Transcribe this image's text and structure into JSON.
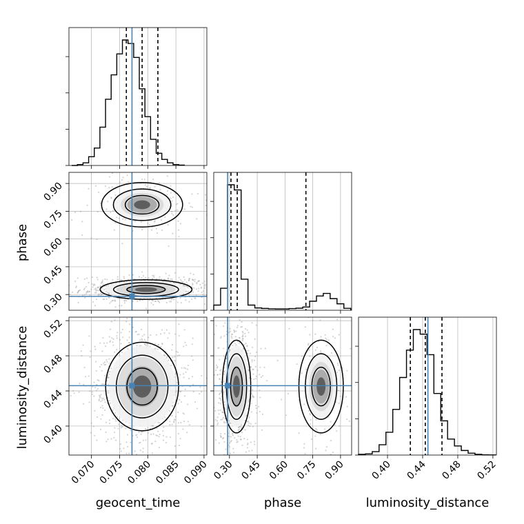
{
  "chart_data": {
    "type": "corner",
    "parameters": [
      "geocent_time",
      "phase",
      "luminosity_distance"
    ],
    "ranges": {
      "geocent_time": [
        0.066,
        0.0905
      ],
      "phase": [
        0.215,
        0.96
      ],
      "luminosity_distance": [
        0.367,
        0.524
      ]
    },
    "ticks": {
      "geocent_time": [
        "0.070",
        "0.075",
        "0.080",
        "0.085",
        "0.090"
      ],
      "phase": [
        "0.30",
        "0.45",
        "0.60",
        "0.75",
        "0.90"
      ],
      "luminosity_distance": [
        "0.40",
        "0.44",
        "0.48",
        "0.52"
      ]
    },
    "injection": {
      "geocent_time": 0.0772,
      "phase": 0.29,
      "luminosity_distance": 0.446
    },
    "quantiles": {
      "geocent_time": [
        0.0762,
        0.079,
        0.0818
      ],
      "phase": [
        0.308,
        0.342,
        0.713
      ],
      "luminosity_distance": [
        0.426,
        0.443,
        0.462
      ]
    },
    "histograms": {
      "geocent_time": {
        "edges_start": 0.0665,
        "bin_width": 0.001,
        "counts": [
          0.0,
          0.5,
          1.5,
          5.0,
          10.0,
          22.0,
          38.0,
          52.0,
          64.0,
          72.0,
          70.0,
          62.0,
          44.0,
          28.0,
          15.0,
          7.0,
          3.5,
          1.5,
          0.5,
          0.2
        ]
      },
      "phase": {
        "edges_start": 0.215,
        "bin_width": 0.037,
        "counts": [
          4.0,
          17.0,
          97.0,
          93.0,
          24.0,
          4.0,
          1.8,
          1.4,
          1.1,
          1.0,
          1.0,
          1.3,
          1.6,
          2.5,
          7.0,
          11.0,
          13.0,
          9.0,
          5.0,
          1.5
        ]
      },
      "luminosity_distance": {
        "edges_start": 0.367,
        "bin_width": 0.0078,
        "counts": [
          0.3,
          0.5,
          1.5,
          4.5,
          10.0,
          20.0,
          34.0,
          46.0,
          55.0,
          53.0,
          44.0,
          27.0,
          15.0,
          7.0,
          4.0,
          2.0,
          0.8,
          0.3,
          0.1,
          0.05
        ]
      }
    },
    "density_2d": {
      "phase_vs_geocent_time": [
        {
          "cx": 0.0797,
          "cy": 0.327,
          "sx": 0.0034,
          "sy": 0.022,
          "weight": 0.78
        },
        {
          "cx": 0.079,
          "cy": 0.785,
          "sx": 0.003,
          "sy": 0.05,
          "weight": 0.22
        }
      ],
      "luminosity_distance_vs_geocent_time": [
        {
          "cx": 0.079,
          "cy": 0.445,
          "sx": 0.0027,
          "sy": 0.021,
          "weight": 1.0
        }
      ],
      "luminosity_distance_vs_phase": [
        {
          "cx": 0.338,
          "cy": 0.445,
          "sx": 0.032,
          "sy": 0.022,
          "weight": 0.78
        },
        {
          "cx": 0.795,
          "cy": 0.445,
          "sx": 0.05,
          "sy": 0.022,
          "weight": 0.22
        }
      ]
    },
    "grid": true,
    "colors": {
      "histogram": "#000000",
      "injection": "#4682b4",
      "scatter": "#9e9e9e",
      "grid": "#b0b0b0"
    }
  }
}
